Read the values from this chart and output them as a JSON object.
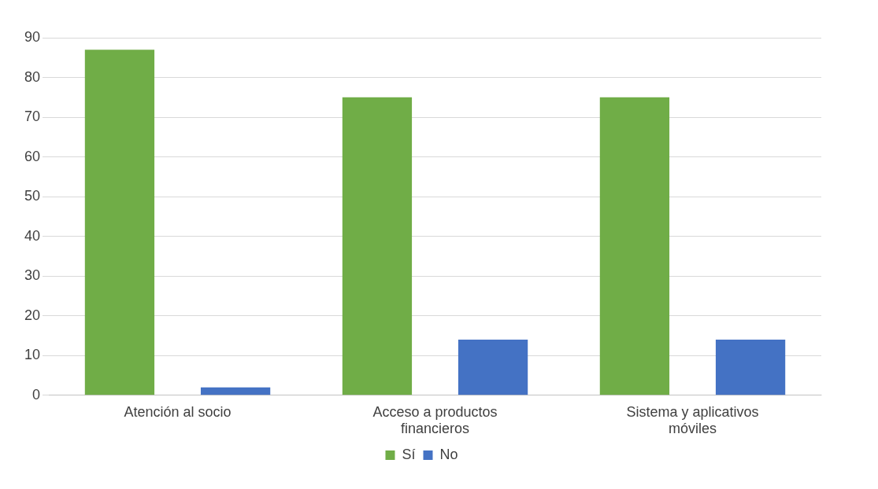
{
  "chart_data": {
    "type": "bar",
    "categories": [
      "Atención al socio",
      "Acceso a productos financieros",
      "Sistema y aplicativos móviles"
    ],
    "series": [
      {
        "name": "Sí",
        "color": "#70ad47",
        "values": [
          87,
          75,
          75
        ]
      },
      {
        "name": "No",
        "color": "#4472c4",
        "values": [
          2,
          14,
          14
        ]
      }
    ],
    "ylim": [
      0,
      90
    ],
    "yticks": [
      0,
      10,
      20,
      30,
      40,
      50,
      60,
      70,
      80,
      90
    ],
    "grid": "y",
    "legend": "bottom"
  }
}
